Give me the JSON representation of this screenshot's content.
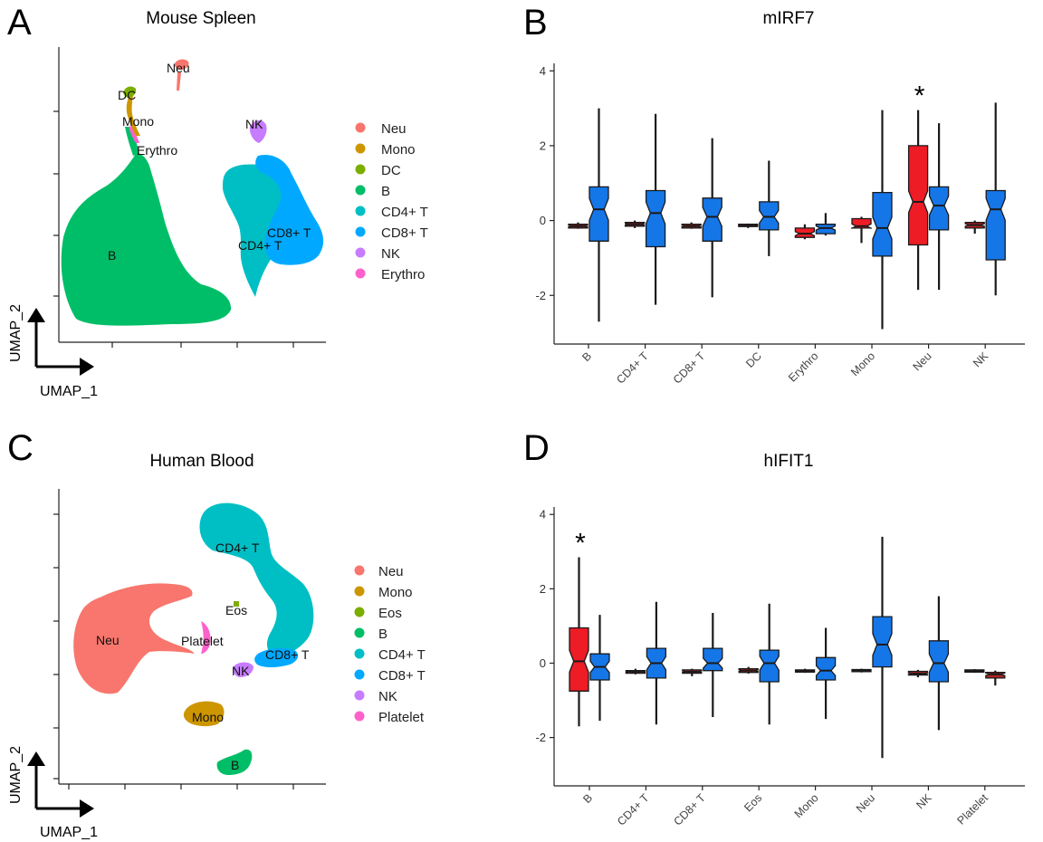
{
  "panels": {
    "A": {
      "letter": "A",
      "title": "Mouse Spleen",
      "cluster_labels": [
        "Neu",
        "DC",
        "Mono",
        "Erythro",
        "NK",
        "B",
        "CD8+ T",
        "CD4+ T"
      ],
      "legend": [
        {
          "label": "Neu",
          "color": "#F8766D"
        },
        {
          "label": "Mono",
          "color": "#CD9600"
        },
        {
          "label": "DC",
          "color": "#7CAE00"
        },
        {
          "label": "B",
          "color": "#00BE67"
        },
        {
          "label": "CD4+ T",
          "color": "#00BFC4"
        },
        {
          "label": "CD8+ T",
          "color": "#00A9FF"
        },
        {
          "label": "NK",
          "color": "#C77CFF"
        },
        {
          "label": "Erythro",
          "color": "#FF61CC"
        }
      ],
      "axis_x": "UMAP_1",
      "axis_y": "UMAP_2"
    },
    "C": {
      "letter": "C",
      "title": "Human Blood",
      "cluster_labels": [
        "CD4+ T",
        "Eos",
        "Neu",
        "Platelet",
        "CD8+ T",
        "NK",
        "Mono",
        "B"
      ],
      "legend": [
        {
          "label": "Neu",
          "color": "#F8766D"
        },
        {
          "label": "Mono",
          "color": "#CD9600"
        },
        {
          "label": "Eos",
          "color": "#7CAE00"
        },
        {
          "label": "B",
          "color": "#00BE67"
        },
        {
          "label": "CD4+ T",
          "color": "#00BFC4"
        },
        {
          "label": "CD8+ T",
          "color": "#00A9FF"
        },
        {
          "label": "NK",
          "color": "#C77CFF"
        },
        {
          "label": "Platelet",
          "color": "#FF61CC"
        }
      ],
      "axis_x": "UMAP_1",
      "axis_y": "UMAP_2"
    }
  },
  "colors": {
    "red": "#EE1C25",
    "dark_red": "#B22222",
    "blue": "#1576E8",
    "outline": "#1A1A1A"
  },
  "chart_data": [
    {
      "type": "box",
      "panel": "B",
      "letter": "B",
      "title": "mIRF7",
      "ylim": [
        -3.3,
        4.2
      ],
      "yticks": [
        -2,
        0,
        2,
        4
      ],
      "categories": [
        "B",
        "CD4+ T",
        "CD8+ T",
        "DC",
        "Erythro",
        "Mono",
        "Neu",
        "NK"
      ],
      "significant": [
        "Neu"
      ],
      "significance_marker": "*",
      "pairs": [
        {
          "category": "B",
          "left": {
            "fill": "dark",
            "min": -0.22,
            "q1": -0.2,
            "median": -0.15,
            "q3": -0.1,
            "max": -0.05
          },
          "right": {
            "fill": "blue",
            "min": -2.7,
            "q1": -0.55,
            "median": 0.3,
            "q3": 0.9,
            "max": 3.0
          }
        },
        {
          "category": "CD4+ T",
          "left": {
            "fill": "dark",
            "min": -0.2,
            "q1": -0.15,
            "median": -0.1,
            "q3": -0.05,
            "max": 0.0
          },
          "right": {
            "fill": "blue",
            "min": -2.25,
            "q1": -0.7,
            "median": 0.2,
            "q3": 0.8,
            "max": 2.85
          }
        },
        {
          "category": "CD8+ T",
          "left": {
            "fill": "dark",
            "min": -0.22,
            "q1": -0.2,
            "median": -0.15,
            "q3": -0.1,
            "max": -0.05
          },
          "right": {
            "fill": "blue",
            "min": -2.05,
            "q1": -0.55,
            "median": 0.1,
            "q3": 0.6,
            "max": 2.2
          }
        },
        {
          "category": "DC",
          "left": {
            "fill": "dark",
            "min": -0.2,
            "q1": -0.16,
            "median": -0.14,
            "q3": -0.1,
            "max": -0.08
          },
          "right": {
            "fill": "blue",
            "min": -0.95,
            "q1": -0.25,
            "median": 0.1,
            "q3": 0.5,
            "max": 1.6
          }
        },
        {
          "category": "Erythro",
          "left": {
            "fill": "red",
            "min": -0.5,
            "q1": -0.45,
            "median": -0.35,
            "q3": -0.2,
            "max": -0.1
          },
          "right": {
            "fill": "blue",
            "min": -0.4,
            "q1": -0.35,
            "median": -0.2,
            "q3": -0.1,
            "max": 0.2
          }
        },
        {
          "category": "Mono",
          "left": {
            "fill": "red",
            "min": -0.6,
            "q1": -0.2,
            "median": -0.15,
            "q3": 0.05,
            "max": 0.1
          },
          "right": {
            "fill": "blue",
            "min": -2.9,
            "q1": -0.95,
            "median": -0.2,
            "q3": 0.75,
            "max": 2.95
          }
        },
        {
          "category": "Neu",
          "left": {
            "fill": "red",
            "min": -1.85,
            "q1": -0.65,
            "median": 0.5,
            "q3": 2.0,
            "max": 2.95
          },
          "right": {
            "fill": "blue",
            "min": -1.85,
            "q1": -0.25,
            "median": 0.4,
            "q3": 0.9,
            "max": 2.6
          }
        },
        {
          "category": "NK",
          "left": {
            "fill": "dark",
            "min": -0.35,
            "q1": -0.2,
            "median": -0.12,
            "q3": -0.05,
            "max": 0.0
          },
          "right": {
            "fill": "blue",
            "min": -2.0,
            "q1": -1.05,
            "median": 0.3,
            "q3": 0.8,
            "max": 3.15
          }
        }
      ]
    },
    {
      "type": "box",
      "panel": "D",
      "letter": "D",
      "title": "hIFIT1",
      "ylim": [
        -3.3,
        4.2
      ],
      "yticks": [
        -2,
        0,
        2,
        4
      ],
      "categories": [
        "B",
        "CD4+ T",
        "CD8+ T",
        "Eos",
        "Mono",
        "Neu",
        "NK",
        "Platelet"
      ],
      "significant": [
        "B"
      ],
      "significance_marker": "*",
      "pairs": [
        {
          "category": "B",
          "left": {
            "fill": "red",
            "min": -1.7,
            "q1": -0.75,
            "median": 0.05,
            "q3": 0.95,
            "max": 2.85
          },
          "right": {
            "fill": "blue",
            "min": -1.55,
            "q1": -0.45,
            "median": -0.1,
            "q3": 0.25,
            "max": 1.3
          }
        },
        {
          "category": "CD4+ T",
          "left": {
            "fill": "dark",
            "min": -0.3,
            "q1": -0.27,
            "median": -0.23,
            "q3": -0.2,
            "max": -0.15
          },
          "right": {
            "fill": "blue",
            "min": -1.65,
            "q1": -0.4,
            "median": 0.0,
            "q3": 0.4,
            "max": 1.65
          }
        },
        {
          "category": "CD8+ T",
          "left": {
            "fill": "dark",
            "min": -0.35,
            "q1": -0.27,
            "median": -0.23,
            "q3": -0.18,
            "max": -0.15
          },
          "right": {
            "fill": "blue",
            "min": -1.45,
            "q1": -0.2,
            "median": 0.0,
            "q3": 0.4,
            "max": 1.35
          }
        },
        {
          "category": "Eos",
          "left": {
            "fill": "dark",
            "min": -0.28,
            "q1": -0.25,
            "median": -0.2,
            "q3": -0.15,
            "max": -0.1
          },
          "right": {
            "fill": "blue",
            "min": -1.65,
            "q1": -0.5,
            "median": 0.0,
            "q3": 0.35,
            "max": 1.6
          }
        },
        {
          "category": "Mono",
          "left": {
            "fill": "dark",
            "min": -0.26,
            "q1": -0.24,
            "median": -0.2,
            "q3": -0.18,
            "max": -0.15
          },
          "right": {
            "fill": "blue",
            "min": -1.5,
            "q1": -0.45,
            "median": -0.2,
            "q3": 0.15,
            "max": 0.95
          }
        },
        {
          "category": "Neu",
          "left": {
            "fill": "dark",
            "min": -0.25,
            "q1": -0.23,
            "median": -0.2,
            "q3": -0.17,
            "max": -0.15
          },
          "right": {
            "fill": "blue",
            "min": -2.55,
            "q1": -0.1,
            "median": 0.5,
            "q3": 1.25,
            "max": 3.4
          }
        },
        {
          "category": "NK",
          "left": {
            "fill": "dark",
            "min": -0.38,
            "q1": -0.32,
            "median": -0.28,
            "q3": -0.22,
            "max": -0.18
          },
          "right": {
            "fill": "blue",
            "min": -1.8,
            "q1": -0.5,
            "median": 0.0,
            "q3": 0.6,
            "max": 1.8
          }
        },
        {
          "category": "Platelet",
          "left": {
            "fill": "dark",
            "min": -0.26,
            "q1": -0.24,
            "median": -0.21,
            "q3": -0.18,
            "max": -0.16
          },
          "right": {
            "fill": "dark",
            "min": -0.6,
            "q1": -0.4,
            "median": -0.3,
            "q3": -0.25,
            "max": -0.2
          }
        }
      ]
    }
  ]
}
